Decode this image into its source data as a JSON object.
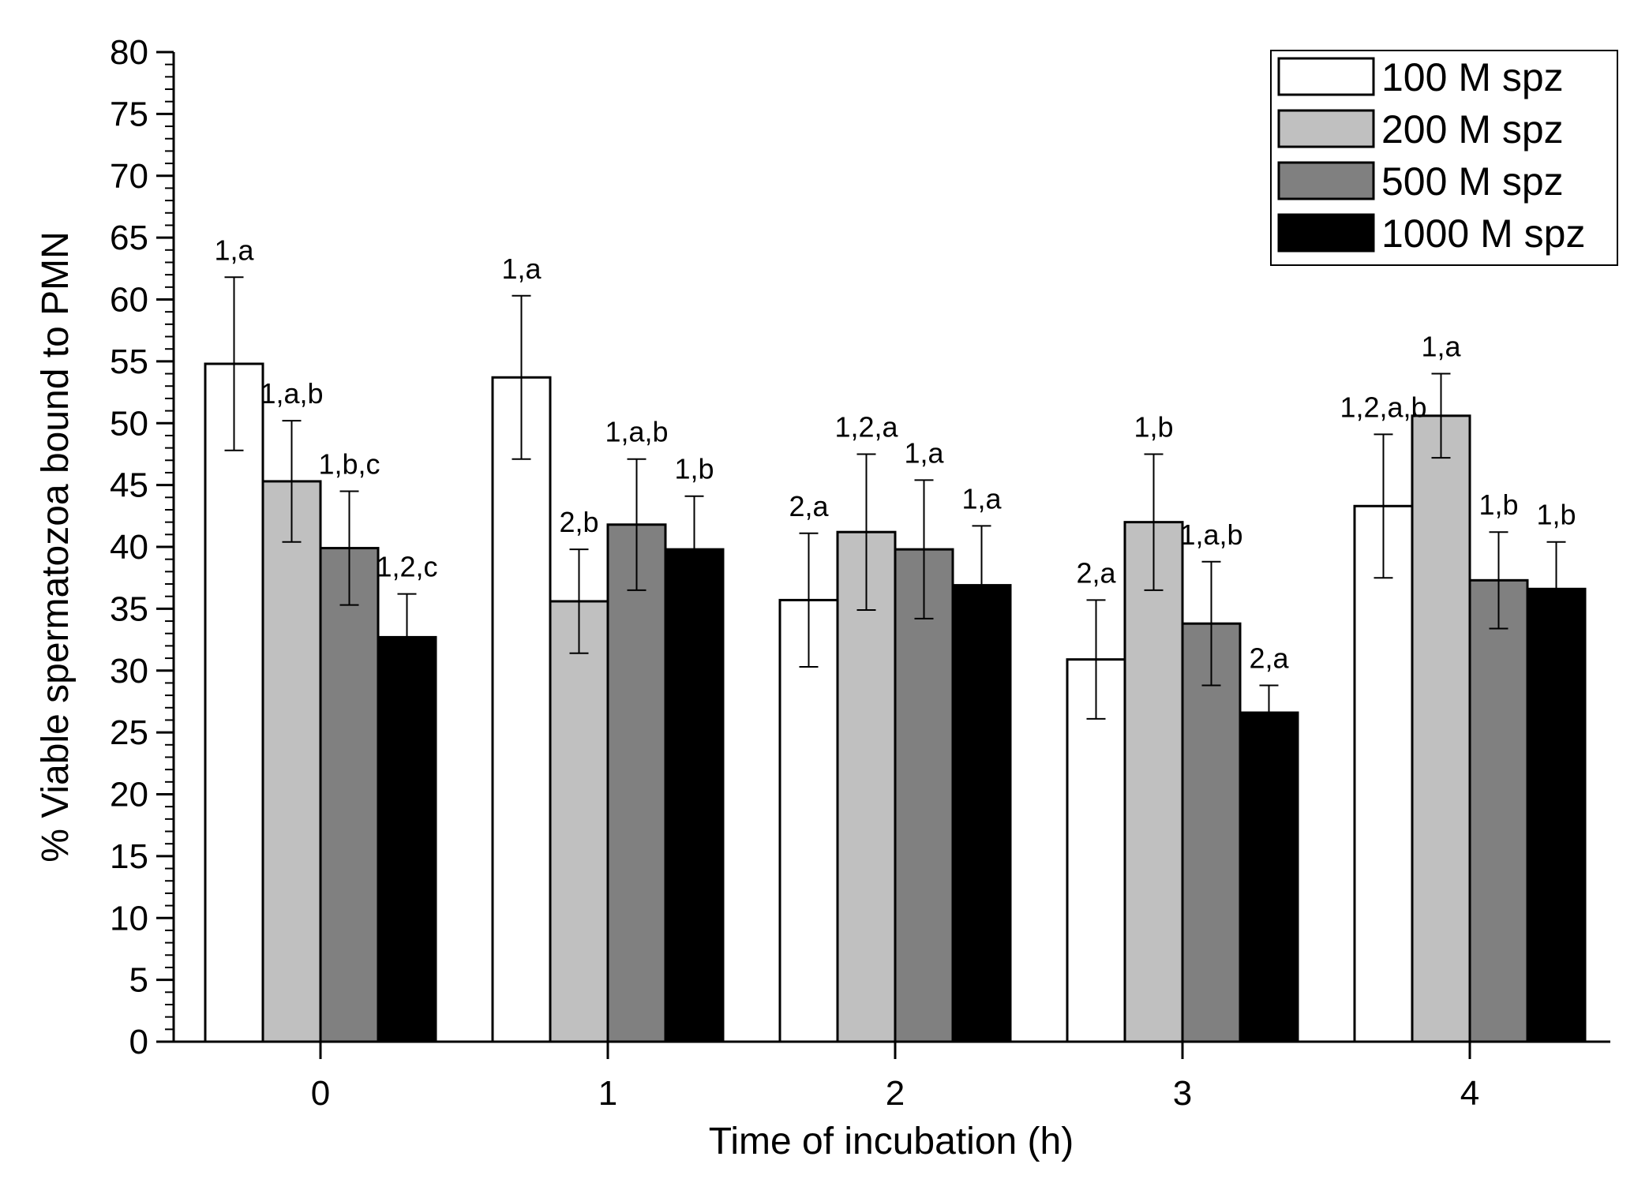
{
  "chart_data": {
    "type": "bar",
    "title": "",
    "xlabel": "Time of incubation (h)",
    "ylabel": "% Viable spermatozoa bound to PMN",
    "ylim": [
      0,
      80
    ],
    "yticks": [
      0,
      5,
      10,
      15,
      20,
      25,
      30,
      35,
      40,
      45,
      50,
      55,
      60,
      65,
      70,
      75,
      80
    ],
    "ytick_labels": [
      "0",
      "5",
      "10",
      "15",
      "20",
      "25",
      "30",
      "35",
      "40",
      "45",
      "50",
      "55",
      "60",
      "65",
      "70",
      "75",
      "80"
    ],
    "categories": [
      "0",
      "1",
      "2",
      "3",
      "4"
    ],
    "legend_position": "top-right",
    "series": [
      {
        "name": "100 M spz",
        "color": "#ffffff",
        "values": [
          54.8,
          53.7,
          35.7,
          30.9,
          43.3
        ],
        "errors": [
          7.0,
          6.6,
          5.4,
          4.8,
          5.8
        ],
        "labels": [
          "1,a",
          "1,a",
          "2,a",
          "2,a",
          "1,2,a,b"
        ]
      },
      {
        "name": "200 M spz",
        "color": "#c0c0c0",
        "values": [
          45.3,
          35.6,
          41.2,
          42.0,
          50.6
        ],
        "errors": [
          4.9,
          4.2,
          6.3,
          5.5,
          3.4
        ],
        "labels": [
          "1,a,b",
          "2,b",
          "1,2,a",
          "1,b",
          "1,a"
        ]
      },
      {
        "name": "500 M spz",
        "color": "#808080",
        "values": [
          39.9,
          41.8,
          39.8,
          33.8,
          37.3
        ],
        "errors": [
          4.6,
          5.3,
          5.6,
          5.0,
          3.9
        ],
        "labels": [
          "1,b,c",
          "1,a,b",
          "1,a",
          "1,a,b",
          "1,b"
        ]
      },
      {
        "name": "1000 M spz",
        "color": "#000000",
        "values": [
          32.7,
          39.8,
          36.9,
          26.6,
          36.6
        ],
        "errors": [
          3.5,
          4.3,
          4.8,
          2.2,
          3.8
        ],
        "labels": [
          "1,2,c",
          "1,b",
          "1,a",
          "2,a",
          "1,b"
        ]
      }
    ]
  }
}
